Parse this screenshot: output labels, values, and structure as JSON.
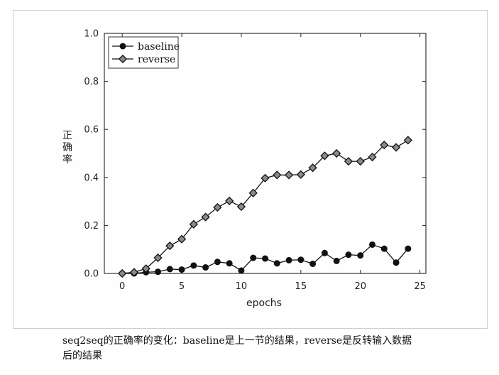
{
  "caption": {
    "line1": "seq2seq的正确率的变化：baseline是上一节的结果，reverse是反转输入数据",
    "line2": "后的结果"
  },
  "chart_data": {
    "type": "line",
    "title": "",
    "xlabel": "epochs",
    "ylabel": "正确率",
    "xlim": [
      -1.5,
      25.5
    ],
    "ylim": [
      0.0,
      1.0
    ],
    "xticks": [
      0,
      5,
      10,
      15,
      20,
      25
    ],
    "yticks": [
      0.0,
      0.2,
      0.4,
      0.6,
      0.8,
      1.0
    ],
    "xtick_labels": [
      "0",
      "5",
      "10",
      "15",
      "20",
      "25"
    ],
    "ytick_labels": [
      "0.0",
      "0.2",
      "0.4",
      "0.6",
      "0.8",
      "1.0"
    ],
    "grid": false,
    "legend_position": "top-left",
    "x": [
      0,
      1,
      2,
      3,
      4,
      5,
      6,
      7,
      8,
      9,
      10,
      11,
      12,
      13,
      14,
      15,
      16,
      17,
      18,
      19,
      20,
      21,
      22,
      23,
      24
    ],
    "series": [
      {
        "name": "baseline",
        "marker": "circle",
        "color": "#111111",
        "values": [
          0.0,
          0.0,
          0.005,
          0.007,
          0.018,
          0.016,
          0.033,
          0.025,
          0.048,
          0.042,
          0.012,
          0.065,
          0.062,
          0.042,
          0.055,
          0.057,
          0.04,
          0.085,
          0.052,
          0.078,
          0.075,
          0.12,
          0.103,
          0.045,
          0.103
        ]
      },
      {
        "name": "reverse",
        "marker": "diamond",
        "color": "#111111",
        "values": [
          0.0,
          0.005,
          0.02,
          0.065,
          0.115,
          0.143,
          0.205,
          0.235,
          0.275,
          0.302,
          0.278,
          0.335,
          0.397,
          0.41,
          0.41,
          0.412,
          0.44,
          0.49,
          0.5,
          0.467,
          0.467,
          0.485,
          0.535,
          0.525,
          0.555
        ]
      }
    ]
  }
}
